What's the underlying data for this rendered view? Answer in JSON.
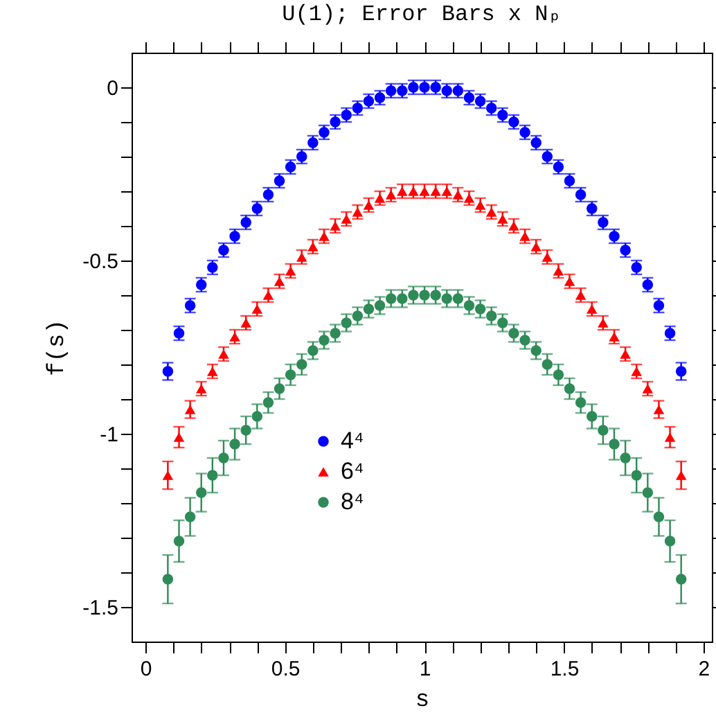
{
  "chart_data": {
    "type": "scatter",
    "title": "U(1); Error Bars x Nₚ",
    "xlabel": "s",
    "ylabel": "f(s)",
    "x": [
      0.08,
      0.12,
      0.16,
      0.2,
      0.24,
      0.28,
      0.32,
      0.36,
      0.4,
      0.44,
      0.48,
      0.52,
      0.56,
      0.6,
      0.64,
      0.68,
      0.72,
      0.76,
      0.8,
      0.84,
      0.88,
      0.92,
      0.96,
      1,
      1.04,
      1.08,
      1.12,
      1.16,
      1.2,
      1.24,
      1.28,
      1.32,
      1.36,
      1.4,
      1.44,
      1.48,
      1.52,
      1.56,
      1.6,
      1.64,
      1.68,
      1.72,
      1.76,
      1.8,
      1.84,
      1.88,
      1.92
    ],
    "series": [
      {
        "name": "4⁴",
        "color": "#0000ff",
        "marker": "circle",
        "values": [
          -0.82,
          -0.71,
          -0.63,
          -0.57,
          -0.52,
          -0.47,
          -0.43,
          -0.39,
          -0.35,
          -0.31,
          -0.27,
          -0.23,
          -0.2,
          -0.16,
          -0.13,
          -0.1,
          -0.08,
          -0.06,
          -0.04,
          -0.03,
          -0.01,
          -0.01,
          0,
          0,
          0,
          -0.01,
          -0.01,
          -0.03,
          -0.04,
          -0.06,
          -0.08,
          -0.1,
          -0.13,
          -0.16,
          -0.2,
          -0.23,
          -0.27,
          -0.31,
          -0.35,
          -0.39,
          -0.43,
          -0.47,
          -0.52,
          -0.57,
          -0.63,
          -0.71,
          -0.82
        ],
        "errors": [
          0.025,
          0.02,
          0.02,
          0.02,
          0.02,
          0.02,
          0.02,
          0.02,
          0.02,
          0.02,
          0.02,
          0.02,
          0.02,
          0.02,
          0.02,
          0.02,
          0.02,
          0.02,
          0.02,
          0.02,
          0.02,
          0.02,
          0.02,
          0.02,
          0.02,
          0.02,
          0.02,
          0.02,
          0.02,
          0.02,
          0.02,
          0.02,
          0.02,
          0.02,
          0.02,
          0.02,
          0.02,
          0.02,
          0.02,
          0.02,
          0.02,
          0.02,
          0.02,
          0.02,
          0.02,
          0.02,
          0.025
        ]
      },
      {
        "name": "6⁴",
        "color": "#ff0000",
        "marker": "triangle",
        "values": [
          -1.12,
          -1.01,
          -0.93,
          -0.87,
          -0.82,
          -0.77,
          -0.72,
          -0.68,
          -0.64,
          -0.6,
          -0.56,
          -0.53,
          -0.49,
          -0.46,
          -0.43,
          -0.4,
          -0.38,
          -0.36,
          -0.34,
          -0.32,
          -0.31,
          -0.3,
          -0.3,
          -0.3,
          -0.3,
          -0.3,
          -0.31,
          -0.32,
          -0.34,
          -0.36,
          -0.38,
          -0.4,
          -0.43,
          -0.46,
          -0.49,
          -0.53,
          -0.56,
          -0.6,
          -0.64,
          -0.68,
          -0.72,
          -0.77,
          -0.82,
          -0.87,
          -0.93,
          -1.01,
          -1.12
        ],
        "errors": [
          0.04,
          0.03,
          0.025,
          0.02,
          0.02,
          0.02,
          0.02,
          0.02,
          0.02,
          0.02,
          0.02,
          0.02,
          0.02,
          0.02,
          0.02,
          0.02,
          0.02,
          0.02,
          0.02,
          0.02,
          0.02,
          0.02,
          0.02,
          0.02,
          0.02,
          0.02,
          0.02,
          0.02,
          0.02,
          0.02,
          0.02,
          0.02,
          0.02,
          0.02,
          0.02,
          0.02,
          0.02,
          0.02,
          0.02,
          0.02,
          0.02,
          0.02,
          0.02,
          0.02,
          0.025,
          0.03,
          0.04
        ]
      },
      {
        "name": "8⁴",
        "color": "#2e8b57",
        "marker": "circle",
        "values": [
          -1.42,
          -1.31,
          -1.24,
          -1.17,
          -1.12,
          -1.07,
          -1.03,
          -0.99,
          -0.95,
          -0.91,
          -0.87,
          -0.83,
          -0.8,
          -0.76,
          -0.73,
          -0.71,
          -0.68,
          -0.66,
          -0.64,
          -0.63,
          -0.61,
          -0.61,
          -0.6,
          -0.6,
          -0.6,
          -0.61,
          -0.61,
          -0.63,
          -0.64,
          -0.66,
          -0.68,
          -0.71,
          -0.73,
          -0.76,
          -0.8,
          -0.83,
          -0.87,
          -0.91,
          -0.95,
          -0.99,
          -1.03,
          -1.07,
          -1.12,
          -1.17,
          -1.24,
          -1.31,
          -1.42
        ],
        "errors": [
          0.07,
          0.06,
          0.055,
          0.055,
          0.05,
          0.05,
          0.045,
          0.04,
          0.035,
          0.03,
          0.03,
          0.03,
          0.03,
          0.025,
          0.025,
          0.025,
          0.025,
          0.025,
          0.025,
          0.025,
          0.025,
          0.025,
          0.025,
          0.025,
          0.025,
          0.025,
          0.025,
          0.025,
          0.025,
          0.025,
          0.025,
          0.025,
          0.025,
          0.025,
          0.03,
          0.03,
          0.03,
          0.03,
          0.035,
          0.04,
          0.045,
          0.05,
          0.05,
          0.055,
          0.055,
          0.06,
          0.07
        ]
      }
    ],
    "xlim": [
      -0.05,
      2.03
    ],
    "ylim": [
      -1.6,
      0.1
    ],
    "xticks": [
      0,
      {
        "value": 0.1,
        "label": null
      },
      {
        "value": 0.2,
        "label": null
      },
      {
        "value": 0.3,
        "label": null
      },
      {
        "value": 0.4,
        "label": null
      },
      0.5,
      {
        "value": 0.6,
        "label": null
      },
      {
        "value": 0.7,
        "label": null
      },
      {
        "value": 0.8,
        "label": null
      },
      {
        "value": 0.9,
        "label": null
      },
      1,
      {
        "value": 1.1,
        "label": null
      },
      {
        "value": 1.2,
        "label": null
      },
      {
        "value": 1.3,
        "label": null
      },
      {
        "value": 1.4,
        "label": null
      },
      1.5,
      {
        "value": 1.6,
        "label": null
      },
      {
        "value": 1.7,
        "label": null
      },
      {
        "value": 1.8,
        "label": null
      },
      {
        "value": 1.9,
        "label": null
      },
      2
    ],
    "yticks": [
      0,
      {
        "value": -0.1,
        "label": null
      },
      {
        "value": -0.2,
        "label": null
      },
      {
        "value": -0.3,
        "label": null
      },
      {
        "value": -0.4,
        "label": null
      },
      -0.5,
      {
        "value": -0.6,
        "label": null
      },
      {
        "value": -0.7,
        "label": null
      },
      {
        "value": -0.8,
        "label": null
      },
      {
        "value": -0.9,
        "label": null
      },
      -1,
      {
        "value": -1.1,
        "label": null
      },
      {
        "value": -1.2,
        "label": null
      },
      {
        "value": -1.3,
        "label": null
      },
      {
        "value": -1.4,
        "label": null
      },
      -1.5
    ],
    "grid": false,
    "legend": "bottom"
  }
}
